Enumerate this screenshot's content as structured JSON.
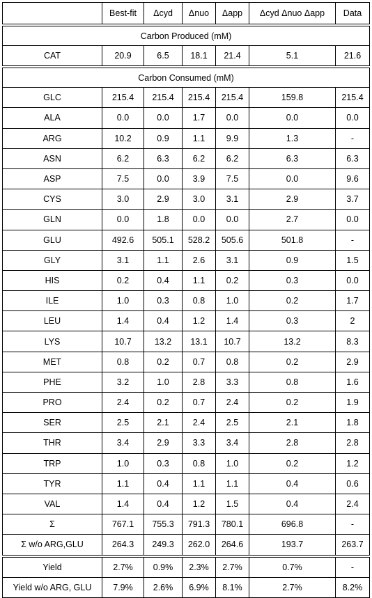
{
  "header": [
    "",
    "Best-fit",
    "Δcyd",
    "Δnuo",
    "Δapp",
    "Δcyd Δnuo Δapp",
    "Data"
  ],
  "produced": {
    "title": "Carbon Produced (mM)",
    "rows": [
      [
        "CAT",
        "20.9",
        "6.5",
        "18.1",
        "21.4",
        "5.1",
        "21.6"
      ]
    ]
  },
  "consumed": {
    "title": "Carbon Consumed (mM)",
    "rows": [
      [
        "GLC",
        "215.4",
        "215.4",
        "215.4",
        "215.4",
        "159.8",
        "215.4"
      ],
      [
        "ALA",
        "0.0",
        "0.0",
        "1.7",
        "0.0",
        "0.0",
        "0.0"
      ],
      [
        "ARG",
        "10.2",
        "0.9",
        "1.1",
        "9.9",
        "1.3",
        "-"
      ],
      [
        "ASN",
        "6.2",
        "6.3",
        "6.2",
        "6.2",
        "6.3",
        "6.3"
      ],
      [
        "ASP",
        "7.5",
        "0.0",
        "3.9",
        "7.5",
        "0.0",
        "9.6"
      ],
      [
        "CYS",
        "3.0",
        "2.9",
        "3.0",
        "3.1",
        "2.9",
        "3.7"
      ],
      [
        "GLN",
        "0.0",
        "1.8",
        "0.0",
        "0.0",
        "2.7",
        "0.0"
      ],
      [
        "GLU",
        "492.6",
        "505.1",
        "528.2",
        "505.6",
        "501.8",
        "-"
      ],
      [
        "GLY",
        "3.1",
        "1.1",
        "2.6",
        "3.1",
        "0.9",
        "1.5"
      ],
      [
        "HIS",
        "0.2",
        "0.4",
        "1.1",
        "0.2",
        "0.3",
        "0.0"
      ],
      [
        "ILE",
        "1.0",
        "0.3",
        "0.8",
        "1.0",
        "0.2",
        "1.7"
      ],
      [
        "LEU",
        "1.4",
        "0.4",
        "1.2",
        "1.4",
        "0.3",
        "2"
      ],
      [
        "LYS",
        "10.7",
        "13.2",
        "13.1",
        "10.7",
        "13.2",
        "8.3"
      ],
      [
        "MET",
        "0.8",
        "0.2",
        "0.7",
        "0.8",
        "0.2",
        "2.9"
      ],
      [
        "PHE",
        "3.2",
        "1.0",
        "2.8",
        "3.3",
        "0.8",
        "1.6"
      ],
      [
        "PRO",
        "2.4",
        "0.2",
        "0.7",
        "2.4",
        "0.2",
        "1.9"
      ],
      [
        "SER",
        "2.5",
        "2.1",
        "2.4",
        "2.5",
        "2.1",
        "1.8"
      ],
      [
        "THR",
        "3.4",
        "2.9",
        "3.3",
        "3.4",
        "2.8",
        "2.8"
      ],
      [
        "TRP",
        "1.0",
        "0.3",
        "0.8",
        "1.0",
        "0.2",
        "1.2"
      ],
      [
        "TYR",
        "1.1",
        "0.4",
        "1.1",
        "1.1",
        "0.4",
        "0.6"
      ],
      [
        "VAL",
        "1.4",
        "0.4",
        "1.2",
        "1.5",
        "0.4",
        "2.4"
      ],
      [
        "Σ",
        "767.1",
        "755.3",
        "791.3",
        "780.1",
        "696.8",
        "-"
      ],
      [
        "Σ w/o ARG,GLU",
        "264.3",
        "249.3",
        "262.0",
        "264.6",
        "193.7",
        "263.7"
      ]
    ]
  },
  "yield": {
    "rows": [
      [
        "Yield",
        "2.7%",
        "0.9%",
        "2.3%",
        "2.7%",
        "0.7%",
        "-"
      ],
      [
        "Yield w/o ARG, GLU",
        "7.9%",
        "2.6%",
        "6.9%",
        "8.1%",
        "2.7%",
        "8.2%"
      ]
    ]
  }
}
